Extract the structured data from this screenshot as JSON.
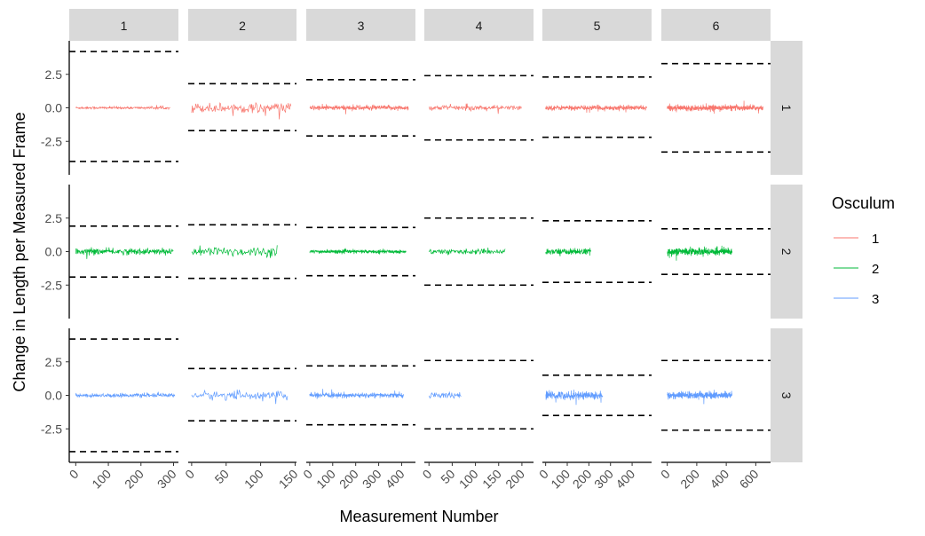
{
  "chart_data": {
    "type": "line",
    "facet_cols": [
      "1",
      "2",
      "3",
      "4",
      "5",
      "6"
    ],
    "facet_rows": [
      "1",
      "2",
      "3"
    ],
    "xlabel": "Measurement Number",
    "ylabel": "Change in Length per Measured Frame",
    "ylim": [
      -5,
      5
    ],
    "y_ticks": [
      -2.5,
      0.0,
      2.5
    ],
    "y_tick_labels": [
      "-2.5",
      "0.0",
      "2.5"
    ],
    "x_axes": [
      {
        "col": "1",
        "xlim": [
          -20,
          315
        ],
        "ticks": [
          0,
          100,
          200,
          300
        ]
      },
      {
        "col": "2",
        "xlim": [
          -5,
          152
        ],
        "ticks": [
          0,
          50,
          100,
          150
        ]
      },
      {
        "col": "3",
        "xlim": [
          -15,
          460
        ],
        "ticks": [
          0,
          100,
          200,
          300,
          400
        ]
      },
      {
        "col": "4",
        "xlim": [
          -10,
          225
        ],
        "ticks": [
          0,
          50,
          100,
          150,
          200
        ]
      },
      {
        "col": "5",
        "xlim": [
          -15,
          490
        ],
        "ticks": [
          0,
          100,
          200,
          300,
          400
        ]
      },
      {
        "col": "6",
        "xlim": [
          -40,
          700
        ],
        "ticks": [
          0,
          200,
          400,
          600
        ]
      }
    ],
    "legend": {
      "title": "Osculum",
      "position": "right",
      "items": [
        {
          "label": "1",
          "color": "#F8766D"
        },
        {
          "label": "2",
          "color": "#00BA38"
        },
        {
          "label": "3",
          "color": "#619CFF"
        }
      ]
    },
    "reference_line_style": "dashed",
    "panels": [
      {
        "row": "1",
        "col": "1",
        "n": 290,
        "amp": 0.1,
        "limits": [
          4.2,
          -4.0
        ]
      },
      {
        "row": "1",
        "col": "2",
        "n": 145,
        "amp": 0.4,
        "limits": [
          1.8,
          -1.7
        ]
      },
      {
        "row": "1",
        "col": "3",
        "n": 430,
        "amp": 0.2,
        "limits": [
          2.1,
          -2.1
        ]
      },
      {
        "row": "1",
        "col": "4",
        "n": 200,
        "amp": 0.2,
        "limits": [
          2.4,
          -2.4
        ]
      },
      {
        "row": "1",
        "col": "5",
        "n": 470,
        "amp": 0.2,
        "limits": [
          2.3,
          -2.2
        ]
      },
      {
        "row": "1",
        "col": "6",
        "n": 650,
        "amp": 0.22,
        "limits": [
          3.3,
          -3.3
        ]
      },
      {
        "row": "2",
        "col": "1",
        "n": 300,
        "amp": 0.25,
        "limits": [
          1.9,
          -1.9
        ]
      },
      {
        "row": "2",
        "col": "2",
        "n": 125,
        "amp": 0.4,
        "limits": [
          2.0,
          -2.0
        ]
      },
      {
        "row": "2",
        "col": "3",
        "n": 420,
        "amp": 0.15,
        "limits": [
          1.8,
          -1.8
        ]
      },
      {
        "row": "2",
        "col": "4",
        "n": 165,
        "amp": 0.2,
        "limits": [
          2.5,
          -2.5
        ]
      },
      {
        "row": "2",
        "col": "5",
        "n": 210,
        "amp": 0.25,
        "limits": [
          2.3,
          -2.3
        ]
      },
      {
        "row": "2",
        "col": "6",
        "n": 440,
        "amp": 0.3,
        "limits": [
          1.7,
          -1.7
        ]
      },
      {
        "row": "3",
        "col": "1",
        "n": 305,
        "amp": 0.15,
        "limits": [
          4.2,
          -4.2
        ]
      },
      {
        "row": "3",
        "col": "2",
        "n": 140,
        "amp": 0.35,
        "limits": [
          2.0,
          -1.9
        ]
      },
      {
        "row": "3",
        "col": "3",
        "n": 410,
        "amp": 0.2,
        "limits": [
          2.2,
          -2.2
        ]
      },
      {
        "row": "3",
        "col": "4",
        "n": 70,
        "amp": 0.25,
        "limits": [
          2.6,
          -2.5
        ]
      },
      {
        "row": "3",
        "col": "5",
        "n": 265,
        "amp": 0.35,
        "limits": [
          1.5,
          -1.5
        ]
      },
      {
        "row": "3",
        "col": "6",
        "n": 440,
        "amp": 0.3,
        "limits": [
          2.6,
          -2.6
        ]
      }
    ]
  }
}
